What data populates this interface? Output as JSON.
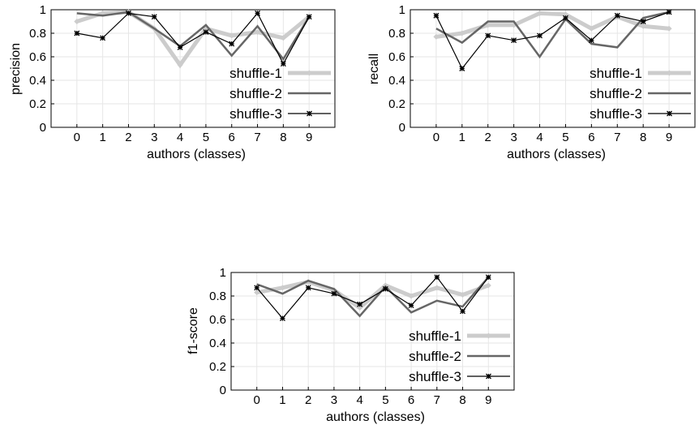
{
  "chart_data": [
    {
      "type": "line",
      "xlabel": "authors (classes)",
      "ylabel": "precision",
      "ylim": [
        0,
        1
      ],
      "x": [
        0,
        1,
        2,
        3,
        4,
        5,
        6,
        7,
        8,
        9
      ],
      "yticks": [
        "0",
        "0.2",
        "0.4",
        "0.6",
        "0.8",
        "1"
      ],
      "grid": true,
      "legend_position": "bottom-right",
      "series": [
        {
          "name": "shuffle-1",
          "values": [
            0.9,
            0.97,
            0.98,
            0.84,
            0.53,
            0.84,
            0.78,
            0.81,
            0.76,
            0.94
          ]
        },
        {
          "name": "shuffle-2",
          "values": [
            0.97,
            0.95,
            0.98,
            0.84,
            0.69,
            0.87,
            0.61,
            0.86,
            0.58,
            0.94
          ]
        },
        {
          "name": "shuffle-3",
          "values": [
            0.8,
            0.76,
            0.97,
            0.94,
            0.68,
            0.81,
            0.71,
            0.97,
            0.54,
            0.94
          ]
        }
      ]
    },
    {
      "type": "line",
      "xlabel": "authors (classes)",
      "ylabel": "recall",
      "ylim": [
        0,
        1
      ],
      "x": [
        0,
        1,
        2,
        3,
        4,
        5,
        6,
        7,
        8,
        9
      ],
      "yticks": [
        "0",
        "0.2",
        "0.4",
        "0.6",
        "0.8",
        "1"
      ],
      "grid": true,
      "legend_position": "bottom-right",
      "series": [
        {
          "name": "shuffle-1",
          "values": [
            0.77,
            0.8,
            0.87,
            0.87,
            0.97,
            0.96,
            0.84,
            0.94,
            0.86,
            0.84
          ]
        },
        {
          "name": "shuffle-2",
          "values": [
            0.84,
            0.72,
            0.9,
            0.9,
            0.6,
            0.92,
            0.71,
            0.68,
            0.93,
            0.98
          ]
        },
        {
          "name": "shuffle-3",
          "values": [
            0.95,
            0.5,
            0.78,
            0.74,
            0.78,
            0.93,
            0.74,
            0.95,
            0.9,
            0.98
          ]
        }
      ]
    },
    {
      "type": "line",
      "xlabel": "authors (classes)",
      "ylabel": "f1-score",
      "ylim": [
        0,
        1
      ],
      "x": [
        0,
        1,
        2,
        3,
        4,
        5,
        6,
        7,
        8,
        9
      ],
      "yticks": [
        "0",
        "0.2",
        "0.4",
        "0.6",
        "0.8",
        "1"
      ],
      "grid": true,
      "legend_position": "bottom-right",
      "series": [
        {
          "name": "shuffle-1",
          "values": [
            0.83,
            0.87,
            0.92,
            0.85,
            0.7,
            0.89,
            0.8,
            0.87,
            0.81,
            0.89
          ]
        },
        {
          "name": "shuffle-2",
          "values": [
            0.9,
            0.82,
            0.93,
            0.86,
            0.63,
            0.88,
            0.66,
            0.76,
            0.71,
            0.96
          ]
        },
        {
          "name": "shuffle-3",
          "values": [
            0.87,
            0.61,
            0.87,
            0.82,
            0.73,
            0.86,
            0.72,
            0.96,
            0.67,
            0.96
          ]
        }
      ]
    }
  ],
  "colors": {
    "shuffle-1": "#cccccc",
    "shuffle-2": "#666666",
    "shuffle-3": "#000000",
    "grid": "#e6e6e6",
    "frame": "#000000"
  }
}
